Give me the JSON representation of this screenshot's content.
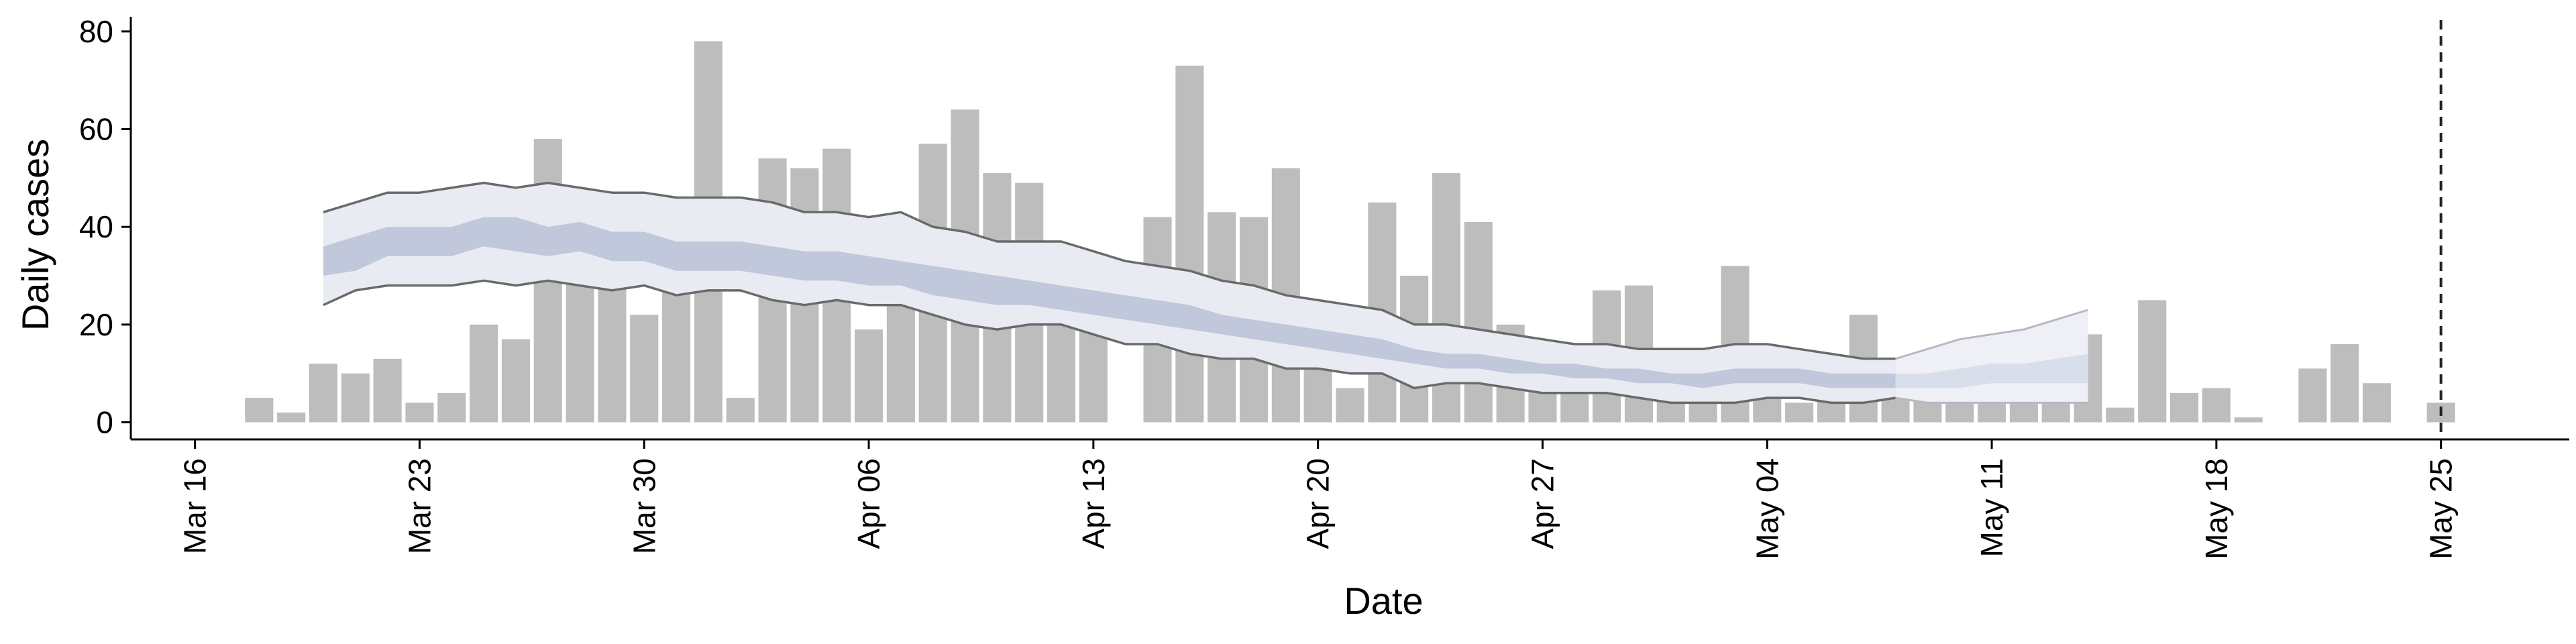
{
  "chart_data": {
    "type": "bar",
    "title": "",
    "xlabel": "Date",
    "ylabel": "Daily cases",
    "ylim": [
      -3.5,
      83
    ],
    "y_ticks": [
      0,
      20,
      40,
      60,
      80
    ],
    "x_range": [
      "2020-03-14",
      "2020-05-29"
    ],
    "x_ticks": [
      {
        "date": "2020-03-16",
        "label": "Mar 16"
      },
      {
        "date": "2020-03-23",
        "label": "Mar 23"
      },
      {
        "date": "2020-03-30",
        "label": "Mar 30"
      },
      {
        "date": "2020-04-06",
        "label": "Apr 06"
      },
      {
        "date": "2020-04-13",
        "label": "Apr 13"
      },
      {
        "date": "2020-04-20",
        "label": "Apr 20"
      },
      {
        "date": "2020-04-27",
        "label": "Apr 27"
      },
      {
        "date": "2020-05-04",
        "label": "May 04"
      },
      {
        "date": "2020-05-11",
        "label": "May 11"
      },
      {
        "date": "2020-05-18",
        "label": "May 18"
      },
      {
        "date": "2020-05-25",
        "label": "May 25"
      }
    ],
    "grid": false,
    "colors": {
      "bars": "#bdbdbd",
      "outer_band": "#e9ebf2",
      "inner_band": "#c1c8dc",
      "bound_lines": "#6a6a6a",
      "forecast_band": "#eef0f6",
      "forecast_inner": "#d9deeb",
      "forecast_lines": "#b8b8c2",
      "reference_line": "#222222"
    },
    "bars": {
      "start_date": "2020-03-18",
      "values": [
        5,
        2,
        12,
        10,
        13,
        4,
        6,
        20,
        17,
        58,
        36,
        38,
        22,
        38,
        78,
        5,
        54,
        52,
        56,
        19,
        25,
        57,
        64,
        51,
        49,
        26,
        27,
        0,
        42,
        73,
        43,
        42,
        52,
        24,
        7,
        45,
        30,
        51,
        41,
        20,
        8,
        16,
        27,
        28,
        15,
        12,
        32,
        6,
        4,
        6,
        22,
        13,
        8,
        6,
        6,
        6,
        5,
        18,
        3,
        25,
        6,
        7,
        1,
        0,
        11,
        16,
        8,
        0,
        4
      ]
    },
    "model": {
      "start_date": "2020-03-20",
      "end_date": "2020-05-08",
      "upper_90": [
        43,
        45,
        47,
        47,
        48,
        49,
        48,
        49,
        48,
        47,
        47,
        46,
        46,
        46,
        45,
        43,
        43,
        42,
        43,
        40,
        39,
        37,
        37,
        37,
        35,
        33,
        32,
        31,
        29,
        28,
        26,
        25,
        24,
        23,
        20,
        20,
        19,
        18,
        17,
        16,
        16,
        15,
        15,
        15,
        16,
        16,
        15,
        14,
        13,
        13
      ],
      "upper_50": [
        36,
        38,
        40,
        40,
        40,
        42,
        42,
        40,
        41,
        39,
        39,
        37,
        37,
        37,
        36,
        35,
        35,
        34,
        33,
        32,
        31,
        30,
        29,
        28,
        27,
        26,
        25,
        24,
        22,
        21,
        20,
        19,
        18,
        17,
        15,
        14,
        14,
        13,
        12,
        12,
        11,
        11,
        10,
        10,
        11,
        11,
        11,
        10,
        10,
        10
      ],
      "lower_50": [
        30,
        31,
        34,
        34,
        34,
        36,
        35,
        34,
        35,
        33,
        33,
        31,
        31,
        31,
        30,
        29,
        29,
        28,
        28,
        26,
        25,
        24,
        24,
        23,
        22,
        21,
        20,
        19,
        18,
        17,
        16,
        15,
        14,
        13,
        12,
        11,
        11,
        10,
        10,
        9,
        9,
        8,
        8,
        7,
        8,
        8,
        8,
        7,
        7,
        7
      ],
      "lower_90": [
        24,
        27,
        28,
        28,
        28,
        29,
        28,
        29,
        28,
        27,
        28,
        26,
        27,
        27,
        25,
        24,
        25,
        24,
        24,
        22,
        20,
        19,
        20,
        20,
        18,
        16,
        16,
        14,
        13,
        13,
        11,
        11,
        10,
        10,
        7,
        8,
        8,
        7,
        6,
        6,
        6,
        5,
        4,
        4,
        4,
        5,
        5,
        4,
        4,
        5
      ]
    },
    "forecast": {
      "start_date": "2020-05-08",
      "end_date": "2020-05-14",
      "upper_90": [
        13,
        15,
        17,
        18,
        19,
        21,
        23
      ],
      "upper_50": [
        10,
        10,
        11,
        12,
        12,
        13,
        14
      ],
      "lower_50": [
        7,
        7,
        7,
        8,
        8,
        8,
        8
      ],
      "lower_90": [
        5,
        4,
        4,
        4,
        4,
        4,
        4
      ]
    },
    "reference_line_date": "2020-05-25"
  }
}
